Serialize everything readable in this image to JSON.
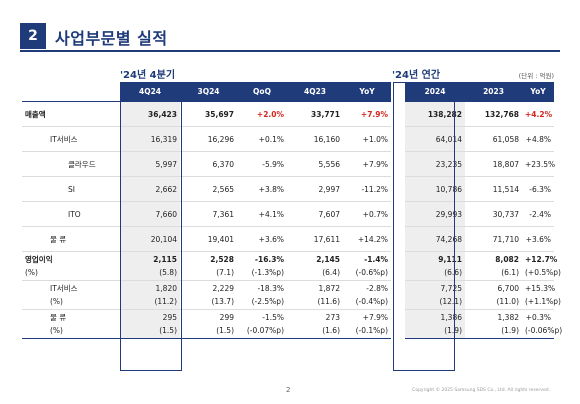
{
  "section": {
    "number": "2",
    "title": "사업부문별 실적"
  },
  "periods": {
    "quarter": "'24년 4분기",
    "year": "'24년 연간"
  },
  "unit": "(단위 : 억원)",
  "headers": [
    "4Q24",
    "3Q24",
    "QoQ",
    "4Q23",
    "YoY",
    "2024",
    "2023",
    "YoY"
  ],
  "rows": {
    "sales": {
      "label": "매출액",
      "values": [
        "36,423",
        "35,697",
        "+2.0%",
        "33,771",
        "+7.9%",
        "138,282",
        "132,768",
        "+4.2%"
      ]
    },
    "it": {
      "label": "IT서비스",
      "values": [
        "16,319",
        "16,296",
        "+0.1%",
        "16,160",
        "+1.0%",
        "64,014",
        "61,058",
        "+4.8%"
      ]
    },
    "cloud": {
      "label": "클라우드",
      "values": [
        "5,997",
        "6,370",
        "-5.9%",
        "5,556",
        "+7.9%",
        "23,235",
        "18,807",
        "+23.5%"
      ]
    },
    "si": {
      "label": "SI",
      "values": [
        "2,662",
        "2,565",
        "+3.8%",
        "2,997",
        "-11.2%",
        "10,786",
        "11,514",
        "-6.3%"
      ]
    },
    "ito": {
      "label": "ITO",
      "values": [
        "7,660",
        "7,361",
        "+4.1%",
        "7,607",
        "+0.7%",
        "29,993",
        "30,737",
        "-2.4%"
      ]
    },
    "logistics": {
      "label": "물 류",
      "values": [
        "20,104",
        "19,401",
        "+3.6%",
        "17,611",
        "+14.2%",
        "74,268",
        "71,710",
        "+3.6%"
      ]
    },
    "op": {
      "label": "영업이익",
      "sublabel": "(%)",
      "values": [
        "2,115",
        "2,528",
        "-16.3%",
        "2,145",
        "-1.4%",
        "9,111",
        "8,082",
        "+12.7%"
      ],
      "subvalues": [
        "(5.8)",
        "(7.1)",
        "(-1.3%p)",
        "(6.4)",
        "(-0.6%p)",
        "(6.6)",
        "(6.1)",
        "(+0.5%p)"
      ]
    },
    "op_it": {
      "label": "IT서비스",
      "sublabel": "(%)",
      "values": [
        "1,820",
        "2,229",
        "-18.3%",
        "1,872",
        "-2.8%",
        "7,725",
        "6,700",
        "+15.3%"
      ],
      "subvalues": [
        "(11.2)",
        "(13.7)",
        "(-2.5%p)",
        "(11.6)",
        "(-0.4%p)",
        "(12.1)",
        "(11.0)",
        "(+1.1%p)"
      ]
    },
    "op_log": {
      "label": "물 류",
      "sublabel": "(%)",
      "values": [
        "295",
        "299",
        "-1.5%",
        "273",
        "+7.9%",
        "1,386",
        "1,382",
        "+0.3%"
      ],
      "subvalues": [
        "(1.5)",
        "(1.5)",
        "(-0.07%p)",
        "(1.6)",
        "(-0.1%p)",
        "(1.9)",
        "(1.9)",
        "(-0.06%p)"
      ]
    }
  },
  "footer": {
    "page": "2",
    "copyright": "Copyright © 2025 Samsung SDS Co., Ltd. All rights reserved."
  },
  "colors": {
    "navy": "#1f3b7a",
    "red": "#d6251c",
    "shade": "#eeeeee"
  }
}
